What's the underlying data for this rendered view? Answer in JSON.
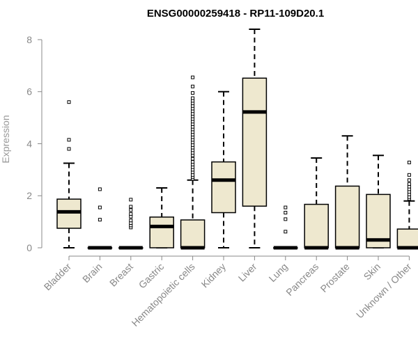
{
  "chart_data": {
    "type": "boxplot",
    "title": "ENSG00000259418 - RP11-109D20.1",
    "ylabel": "Expression",
    "xlabel": "",
    "ylim": [
      0,
      8.4
    ],
    "yticks": [
      0,
      2,
      4,
      6,
      8
    ],
    "grid": false,
    "legend": "none",
    "colors": {
      "box_fill": "#EEE8CF",
      "stroke": "#000000",
      "axis_text": "#888888"
    },
    "categories": [
      "Bladder",
      "Brain",
      "Breast",
      "Gastric",
      "Hematopoietic cells",
      "Kidney",
      "Liver",
      "Lung",
      "Pancreas",
      "Prostate",
      "Skin",
      "Unknown / Other"
    ],
    "boxes": [
      {
        "category": "Bladder",
        "whisker_low": 0.0,
        "q1": 0.75,
        "median": 1.38,
        "q3": 1.87,
        "whisker_high": 3.25,
        "outliers": [
          3.8,
          4.15,
          5.6
        ]
      },
      {
        "category": "Brain",
        "whisker_low": 0.0,
        "q1": 0.0,
        "median": 0.0,
        "q3": 0.0,
        "whisker_high": 0.0,
        "outliers": [
          1.08,
          1.55,
          2.25
        ]
      },
      {
        "category": "Breast",
        "whisker_low": 0.0,
        "q1": 0.0,
        "median": 0.0,
        "q3": 0.0,
        "whisker_high": 0.0,
        "outliers": [
          0.78,
          0.86,
          0.95,
          1.05,
          1.2,
          1.3,
          1.45,
          1.58,
          1.85
        ]
      },
      {
        "category": "Gastric",
        "whisker_low": 0.0,
        "q1": 0.0,
        "median": 0.82,
        "q3": 1.18,
        "whisker_high": 2.3,
        "outliers": []
      },
      {
        "category": "Hematopoietic cells",
        "whisker_low": 0.0,
        "q1": 0.0,
        "median": 0.0,
        "q3": 1.07,
        "whisker_high": 2.6,
        "outliers": [
          2.65,
          2.72,
          2.8,
          2.9,
          3.0,
          3.1,
          3.2,
          3.3,
          3.42,
          3.55,
          3.65,
          3.75,
          3.85,
          3.95,
          4.05,
          4.15,
          4.25,
          4.35,
          4.45,
          4.55,
          4.65,
          4.75,
          4.85,
          4.95,
          5.05,
          5.15,
          5.25,
          5.35,
          5.45,
          5.55,
          5.65,
          5.75,
          5.95,
          6.2,
          6.55
        ]
      },
      {
        "category": "Kidney",
        "whisker_low": 0.0,
        "q1": 1.35,
        "median": 2.6,
        "q3": 3.3,
        "whisker_high": 6.0,
        "outliers": []
      },
      {
        "category": "Liver",
        "whisker_low": 0.0,
        "q1": 1.6,
        "median": 5.22,
        "q3": 6.52,
        "whisker_high": 8.4,
        "outliers": []
      },
      {
        "category": "Lung",
        "whisker_low": 0.0,
        "q1": 0.0,
        "median": 0.0,
        "q3": 0.0,
        "whisker_high": 0.0,
        "outliers": [
          0.62,
          1.1,
          1.35,
          1.55
        ]
      },
      {
        "category": "Pancreas",
        "whisker_low": 0.0,
        "q1": 0.0,
        "median": 0.0,
        "q3": 1.67,
        "whisker_high": 3.45,
        "outliers": []
      },
      {
        "category": "Prostate",
        "whisker_low": 0.0,
        "q1": 0.0,
        "median": 0.0,
        "q3": 2.37,
        "whisker_high": 4.3,
        "outliers": []
      },
      {
        "category": "Skin",
        "whisker_low": 0.0,
        "q1": 0.0,
        "median": 0.3,
        "q3": 2.05,
        "whisker_high": 3.55,
        "outliers": []
      },
      {
        "category": "Unknown / Other",
        "whisker_low": 0.0,
        "q1": 0.0,
        "median": 0.0,
        "q3": 0.72,
        "whisker_high": 1.8,
        "outliers": [
          1.88,
          1.95,
          2.05,
          2.15,
          2.25,
          2.35,
          2.45,
          2.6,
          2.8,
          3.28
        ]
      }
    ]
  }
}
